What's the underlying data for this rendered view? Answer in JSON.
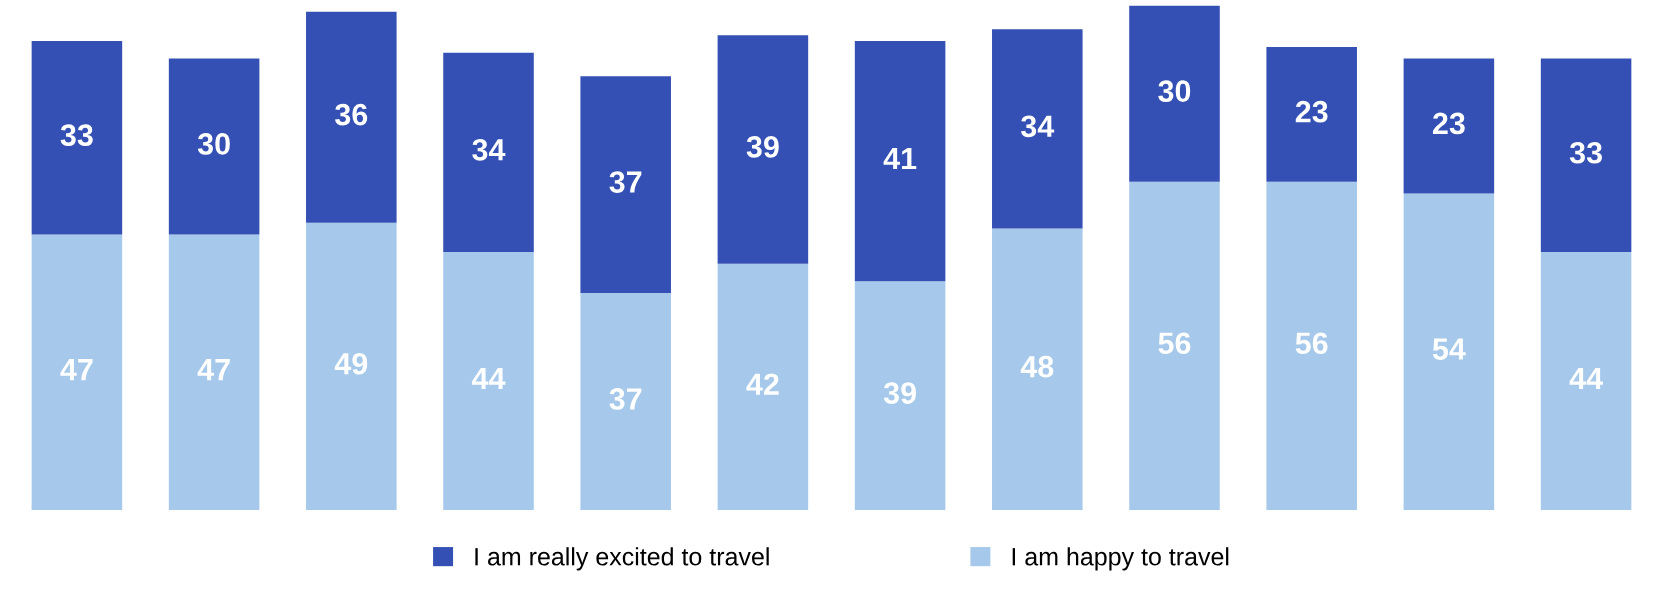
{
  "chart_data": {
    "type": "bar",
    "stacked": true,
    "data_labels": true,
    "legend": "bottom",
    "categories": [
      null,
      null,
      null,
      null,
      null,
      null,
      null,
      null,
      null,
      null,
      null,
      null
    ],
    "series": [
      {
        "name": "I am happy to travel",
        "color": "#a6c9eb",
        "values": [
          47,
          47,
          49,
          44,
          37,
          42,
          39,
          48,
          56,
          56,
          54,
          44
        ]
      },
      {
        "name": "I am really excited to travel",
        "color": "#3450b4",
        "values": [
          33,
          30,
          36,
          34,
          37,
          39,
          41,
          34,
          30,
          23,
          23,
          33
        ]
      }
    ]
  }
}
